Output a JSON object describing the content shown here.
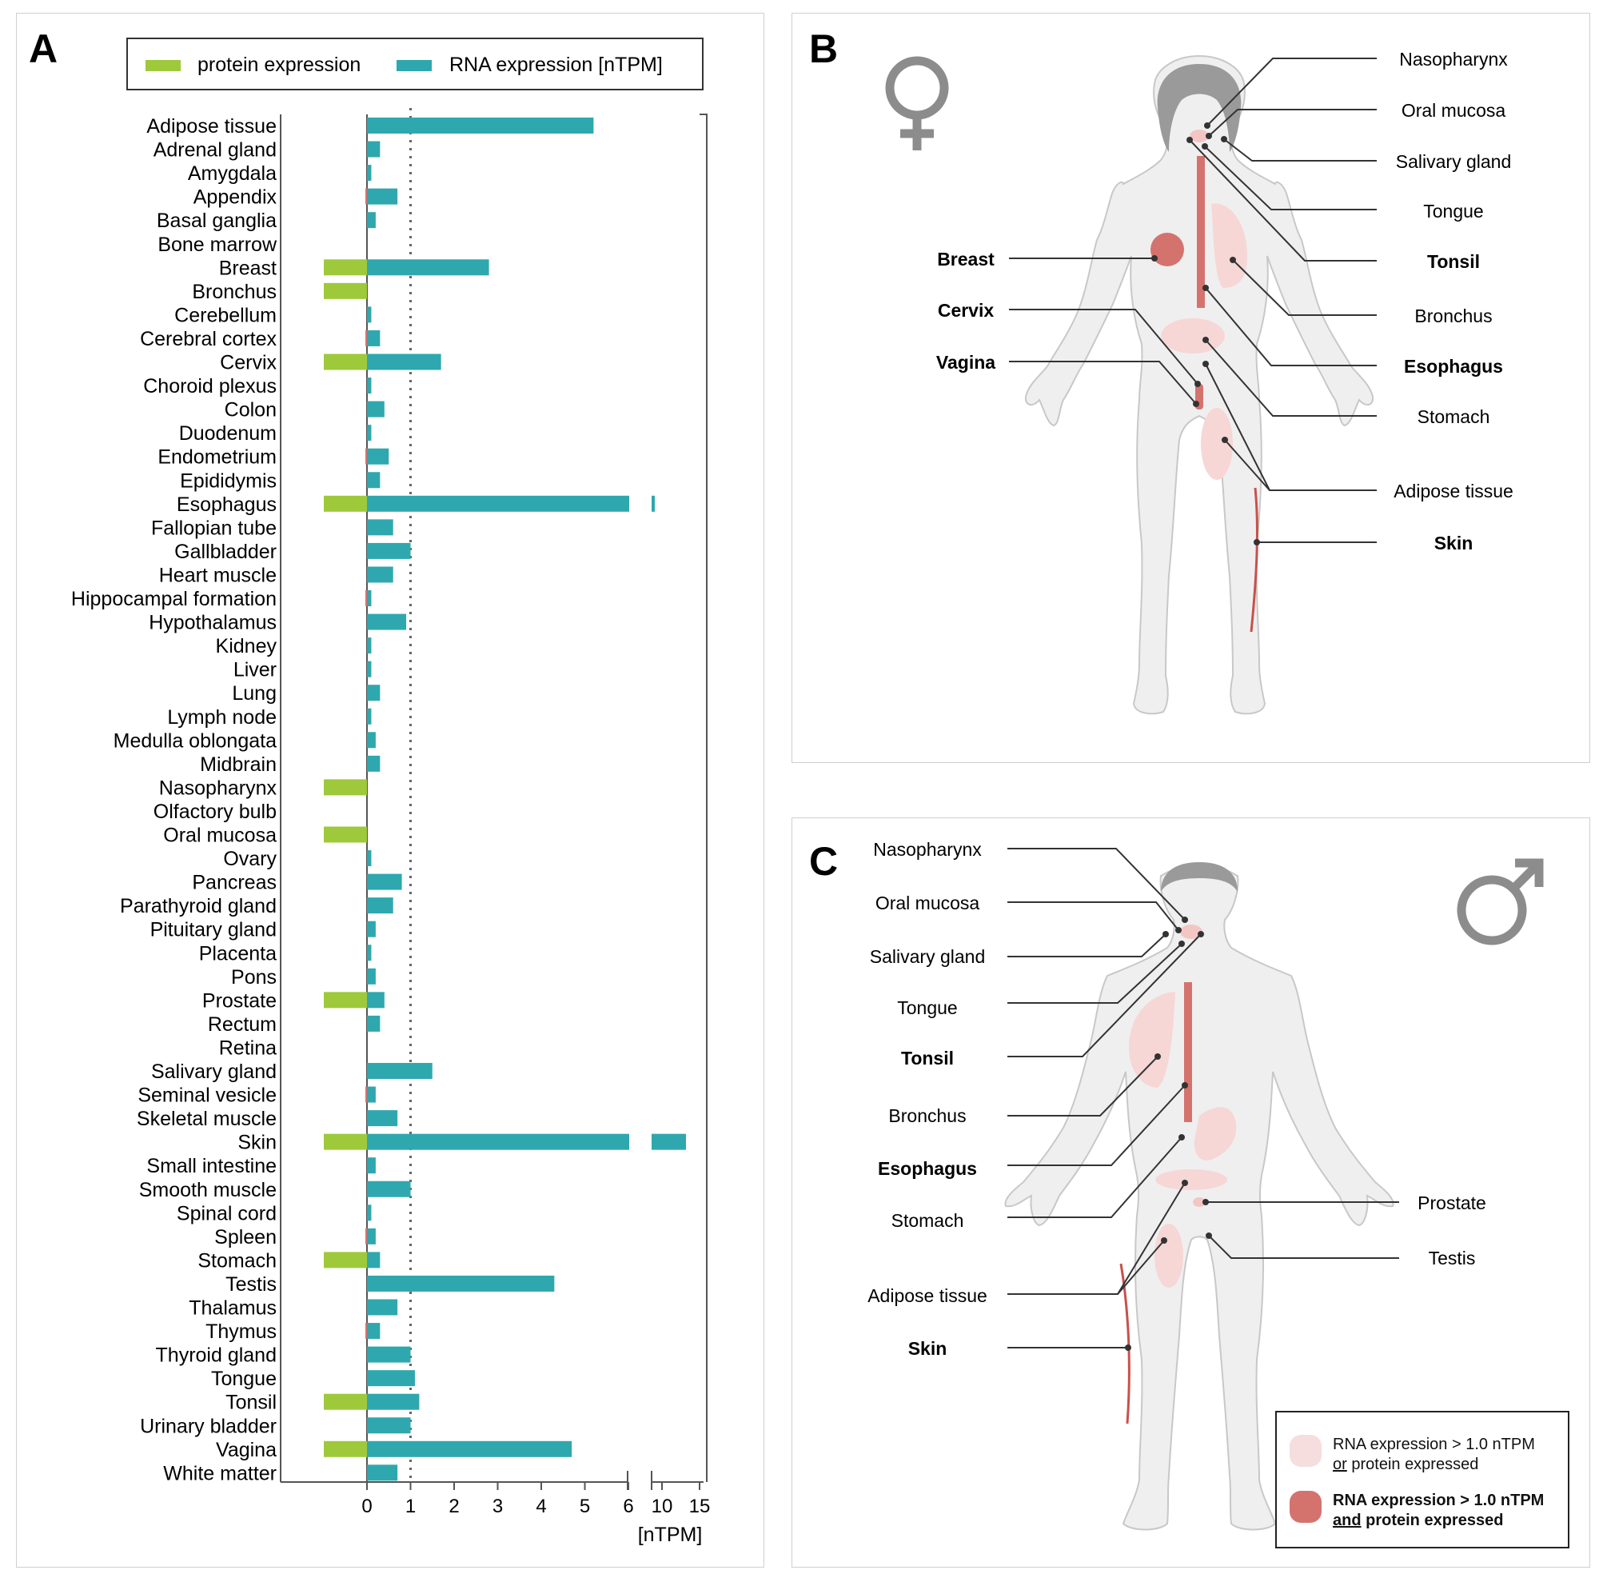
{
  "panel_a": {
    "letter": "A",
    "legend": [
      {
        "label": "protein expression",
        "color": "#9ec93a"
      },
      {
        "label": "RNA expression [nTPM]",
        "color": "#2ea8ae"
      }
    ]
  },
  "chart_data": {
    "type": "bar",
    "orientation": "horizontal",
    "xlabel": "[nTPM]",
    "x_ticks": [
      "0",
      "1",
      "2",
      "3",
      "4",
      "5",
      "6",
      "10",
      "15"
    ],
    "x_axis_break": {
      "segments": [
        [
          0,
          6
        ],
        [
          6,
          15
        ]
      ]
    },
    "threshold_line": 1.0,
    "categories": [
      "Adipose tissue",
      "Adrenal gland",
      "Amygdala",
      "Appendix",
      "Basal ganglia",
      "Bone marrow",
      "Breast",
      "Bronchus",
      "Cerebellum",
      "Cerebral cortex",
      "Cervix",
      "Choroid plexus",
      "Colon",
      "Duodenum",
      "Endometrium",
      "Epididymis",
      "Esophagus",
      "Fallopian tube",
      "Gallbladder",
      "Heart muscle",
      "Hippocampal formation",
      "Hypothalamus",
      "Kidney",
      "Liver",
      "Lung",
      "Lymph node",
      "Medulla oblongata",
      "Midbrain",
      "Nasopharynx",
      "Olfactory bulb",
      "Oral mucosa",
      "Ovary",
      "Pancreas",
      "Parathyroid gland",
      "Pituitary gland",
      "Placenta",
      "Pons",
      "Prostate",
      "Rectum",
      "Retina",
      "Salivary gland",
      "Seminal vesicle",
      "Skeletal muscle",
      "Skin",
      "Small intestine",
      "Smooth muscle",
      "Spinal cord",
      "Spleen",
      "Stomach",
      "Testis",
      "Thalamus",
      "Thymus",
      "Thyroid gland",
      "Tongue",
      "Tonsil",
      "Urinary bladder",
      "Vagina",
      "White matter"
    ],
    "series": [
      {
        "name": "RNA expression [nTPM]",
        "color": "#2ea8ae",
        "values": [
          5.2,
          0.3,
          0.1,
          0.7,
          0.2,
          0,
          2.8,
          0,
          0.1,
          0.3,
          1.7,
          0.1,
          0.4,
          0.1,
          0.5,
          0.3,
          6.9,
          0.6,
          1.0,
          0.6,
          0.1,
          0.9,
          0.1,
          0.1,
          0.3,
          0.1,
          0.2,
          0.3,
          0,
          0,
          0,
          0.1,
          0.8,
          0.6,
          0.2,
          0.1,
          0.2,
          0.4,
          0.3,
          0,
          1.5,
          0.2,
          0.7,
          14.0,
          0.2,
          1.0,
          0.1,
          0.2,
          0.3,
          4.3,
          0.7,
          0.3,
          1.0,
          1.1,
          1.2,
          1.0,
          4.7,
          0.7
        ]
      },
      {
        "name": "protein expression",
        "color": "#9ec93a",
        "values": [
          0,
          0,
          0,
          0,
          0,
          0,
          1,
          1,
          0,
          0,
          1,
          0,
          0,
          0,
          0,
          0,
          1,
          0,
          0,
          0,
          0,
          0,
          0,
          0,
          0,
          0,
          0,
          0,
          1,
          0,
          1,
          0,
          0,
          0,
          0,
          0,
          0,
          1,
          0,
          0,
          0,
          0,
          0,
          1,
          0,
          0,
          0,
          0,
          1,
          0,
          0,
          0,
          0,
          0,
          1,
          0,
          1,
          0
        ]
      }
    ],
    "faint_red_marks": [
      "Appendix",
      "Cerebral cortex",
      "Endometrium",
      "Hippocampal formation",
      "Seminal vesicle",
      "Spleen",
      "Thymus"
    ]
  },
  "panel_b": {
    "letter": "B",
    "symbol": "♀",
    "labels_left": [
      {
        "text": "Breast",
        "bold": true
      },
      {
        "text": "Cervix",
        "bold": true
      },
      {
        "text": "Vagina",
        "bold": true
      }
    ],
    "labels_right": [
      {
        "text": "Nasopharynx",
        "bold": false
      },
      {
        "text": "Oral mucosa",
        "bold": false
      },
      {
        "text": "Salivary gland",
        "bold": false
      },
      {
        "text": "Tongue",
        "bold": false
      },
      {
        "text": "Tonsil",
        "bold": true
      },
      {
        "text": "Bronchus",
        "bold": false
      },
      {
        "text": "Esophagus",
        "bold": true
      },
      {
        "text": "Stomach",
        "bold": false
      },
      {
        "text": "Adipose tissue",
        "bold": false
      },
      {
        "text": "Skin",
        "bold": true
      }
    ]
  },
  "panel_c": {
    "letter": "C",
    "symbol": "♂",
    "labels_left": [
      {
        "text": "Nasopharynx",
        "bold": false
      },
      {
        "text": "Oral mucosa",
        "bold": false
      },
      {
        "text": "Salivary gland",
        "bold": false
      },
      {
        "text": "Tongue",
        "bold": false
      },
      {
        "text": "Tonsil",
        "bold": true
      },
      {
        "text": "Bronchus",
        "bold": false
      },
      {
        "text": "Esophagus",
        "bold": true
      },
      {
        "text": "Stomach",
        "bold": false
      },
      {
        "text": "Adipose tissue",
        "bold": false
      },
      {
        "text": "Skin",
        "bold": true
      }
    ],
    "labels_right": [
      {
        "text": "Prostate",
        "bold": false
      },
      {
        "text": "Testis",
        "bold": false
      }
    ],
    "legend": {
      "light_line1": "RNA expression > 1.0 nTPM",
      "light_line2_u": "or",
      "light_line2_rest": " protein expressed",
      "light_color": "#f6dede",
      "dark_line1": "RNA expression > 1.0 nTPM",
      "dark_line2_u": "and",
      "dark_line2_rest": " protein expressed",
      "dark_color": "#d4736e"
    }
  }
}
